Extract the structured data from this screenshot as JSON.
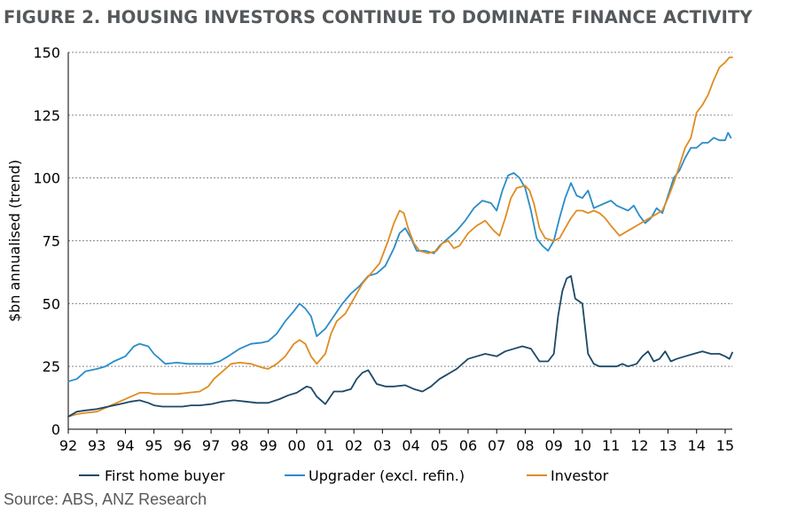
{
  "title": "FIGURE 2. HOUSING INVESTORS CONTINUE TO DOMINATE FINANCE ACTIVITY",
  "source": "Source: ABS, ANZ Research",
  "chart_data": {
    "type": "line",
    "ylabel": "$bn annualised (trend)",
    "xlabel": "",
    "ylim": [
      0,
      150
    ],
    "yticks": [
      0,
      25,
      50,
      75,
      100,
      125,
      150
    ],
    "xlim": [
      1992.0,
      2015.25
    ],
    "xticks": [
      "92",
      "93",
      "94",
      "95",
      "96",
      "97",
      "98",
      "99",
      "00",
      "01",
      "02",
      "03",
      "04",
      "05",
      "06",
      "07",
      "08",
      "09",
      "10",
      "11",
      "12",
      "13",
      "14",
      "15"
    ],
    "grid": "horizontal-dashed",
    "legend_position": "bottom",
    "series": [
      {
        "name": "First home buyer",
        "color": "#1b4968",
        "x": [
          1992.0,
          1992.3,
          1992.6,
          1993.0,
          1993.4,
          1993.8,
          1994.2,
          1994.5,
          1994.8,
          1995.0,
          1995.3,
          1995.6,
          1996.0,
          1996.3,
          1996.6,
          1997.0,
          1997.4,
          1997.8,
          1998.2,
          1998.6,
          1999.0,
          1999.4,
          1999.7,
          2000.0,
          2000.2,
          2000.35,
          2000.5,
          2000.7,
          2001.0,
          2001.3,
          2001.6,
          2001.9,
          2002.1,
          2002.3,
          2002.5,
          2002.8,
          2003.1,
          2003.4,
          2003.8,
          2004.1,
          2004.4,
          2004.7,
          2005.0,
          2005.3,
          2005.6,
          2006.0,
          2006.3,
          2006.6,
          2007.0,
          2007.3,
          2007.6,
          2007.9,
          2008.2,
          2008.5,
          2008.8,
          2009.0,
          2009.15,
          2009.3,
          2009.45,
          2009.6,
          2009.75,
          2010.0,
          2010.2,
          2010.4,
          2010.6,
          2010.8,
          2011.0,
          2011.2,
          2011.4,
          2011.6,
          2011.9,
          2012.1,
          2012.3,
          2012.5,
          2012.7,
          2012.9,
          2013.1,
          2013.3,
          2013.6,
          2013.9,
          2014.2,
          2014.5,
          2014.8,
          2015.0,
          2015.15,
          2015.25
        ],
        "values": [
          5,
          7,
          7.5,
          8,
          9,
          10,
          11,
          11.5,
          10.5,
          9.5,
          9,
          9,
          9,
          9.5,
          9.5,
          10,
          11,
          11.5,
          11,
          10.5,
          10.5,
          12,
          13.5,
          14.5,
          16,
          17,
          16.5,
          13,
          10,
          15,
          15,
          16,
          20,
          22.5,
          23.5,
          18,
          17,
          17,
          17.5,
          16,
          15,
          17,
          20,
          22,
          24,
          28,
          29,
          30,
          29,
          31,
          32,
          33,
          32,
          27,
          27,
          30,
          45,
          55,
          60,
          61,
          52,
          50,
          30,
          26,
          25,
          25,
          25,
          25,
          26,
          25,
          26,
          29,
          31,
          27,
          28,
          31,
          27,
          28,
          29,
          30,
          31,
          30,
          30,
          29,
          28,
          30.5
        ]
      },
      {
        "name": "Upgrader (excl. refin.)",
        "color": "#2b8cc8",
        "x": [
          1992.0,
          1992.3,
          1992.6,
          1993.0,
          1993.3,
          1993.6,
          1994.0,
          1994.3,
          1994.5,
          1994.8,
          1995.0,
          1995.4,
          1995.8,
          1996.2,
          1996.6,
          1997.0,
          1997.3,
          1997.6,
          1998.0,
          1998.4,
          1998.8,
          1999.0,
          1999.3,
          1999.6,
          1999.9,
          2000.1,
          2000.3,
          2000.5,
          2000.7,
          2001.0,
          2001.3,
          2001.6,
          2001.9,
          2002.2,
          2002.5,
          2002.8,
          2003.1,
          2003.4,
          2003.6,
          2003.8,
          2004.0,
          2004.2,
          2004.5,
          2004.8,
          2005.0,
          2005.3,
          2005.6,
          2005.9,
          2006.2,
          2006.5,
          2006.8,
          2007.0,
          2007.2,
          2007.4,
          2007.6,
          2007.8,
          2008.0,
          2008.2,
          2008.4,
          2008.6,
          2008.8,
          2009.0,
          2009.2,
          2009.4,
          2009.6,
          2009.8,
          2010.0,
          2010.2,
          2010.4,
          2010.6,
          2010.8,
          2011.0,
          2011.2,
          2011.4,
          2011.6,
          2011.8,
          2012.0,
          2012.2,
          2012.4,
          2012.6,
          2012.8,
          2013.0,
          2013.2,
          2013.4,
          2013.6,
          2013.8,
          2014.0,
          2014.2,
          2014.4,
          2014.6,
          2014.8,
          2015.0,
          2015.1,
          2015.2
        ],
        "values": [
          19,
          20,
          23,
          24,
          25,
          27,
          29,
          33,
          34,
          33,
          30,
          26,
          26.5,
          26,
          26,
          26,
          27,
          29,
          32,
          34,
          34.5,
          35,
          38,
          43,
          47,
          50,
          48,
          45,
          37,
          40,
          45,
          50,
          54,
          57,
          61,
          62,
          65,
          72,
          78,
          80,
          76,
          71,
          71,
          70,
          73,
          76,
          79,
          83,
          88,
          91,
          90,
          87,
          95,
          101,
          102,
          100,
          96,
          87,
          76,
          73,
          71,
          75,
          84,
          92,
          98,
          93,
          92,
          95,
          88,
          89,
          90,
          91,
          89,
          88,
          87,
          89,
          85,
          82,
          84,
          88,
          86,
          93,
          100,
          103,
          108,
          112,
          112,
          114,
          114,
          116,
          115,
          115,
          118,
          116
        ]
      },
      {
        "name": "Investor",
        "color": "#df8c21",
        "x": [
          1992.0,
          1992.3,
          1992.6,
          1993.0,
          1993.4,
          1993.8,
          1994.2,
          1994.5,
          1994.8,
          1995.0,
          1995.4,
          1995.8,
          1996.2,
          1996.6,
          1996.9,
          1997.1,
          1997.4,
          1997.7,
          1998.0,
          1998.4,
          1998.8,
          1999.0,
          1999.3,
          1999.6,
          1999.9,
          2000.1,
          2000.3,
          2000.5,
          2000.7,
          2001.0,
          2001.2,
          2001.4,
          2001.7,
          2002.0,
          2002.3,
          2002.6,
          2002.9,
          2003.2,
          2003.4,
          2003.6,
          2003.75,
          2003.9,
          2004.1,
          2004.3,
          2004.6,
          2004.9,
          2005.1,
          2005.3,
          2005.5,
          2005.7,
          2006.0,
          2006.3,
          2006.6,
          2006.9,
          2007.1,
          2007.3,
          2007.5,
          2007.7,
          2008.0,
          2008.15,
          2008.3,
          2008.5,
          2008.7,
          2009.0,
          2009.2,
          2009.4,
          2009.6,
          2009.8,
          2010.0,
          2010.2,
          2010.4,
          2010.6,
          2010.8,
          2011.0,
          2011.3,
          2011.6,
          2011.9,
          2012.2,
          2012.5,
          2012.8,
          2013.0,
          2013.2,
          2013.4,
          2013.6,
          2013.8,
          2014.0,
          2014.2,
          2014.4,
          2014.6,
          2014.8,
          2015.0,
          2015.15,
          2015.25
        ],
        "values": [
          5,
          6,
          6.5,
          7,
          9,
          11,
          13,
          14.5,
          14.5,
          14,
          14,
          14,
          14.5,
          15,
          17,
          20,
          23,
          26,
          26.5,
          26,
          24.5,
          24,
          26,
          29,
          34,
          35.5,
          34,
          29,
          26,
          30,
          38,
          43,
          46,
          52,
          58,
          62,
          66,
          75,
          82,
          87,
          86,
          80,
          74,
          71,
          70,
          71,
          74,
          75,
          72,
          73,
          78,
          81,
          83,
          79,
          77,
          84,
          92,
          96,
          97,
          95,
          90,
          80,
          76,
          75,
          76,
          80,
          84,
          87,
          87,
          86,
          87,
          86,
          84,
          81,
          77,
          79,
          81,
          83,
          85,
          87,
          92,
          98,
          105,
          112,
          116,
          126,
          129,
          133,
          139,
          144,
          146,
          148,
          148
        ]
      }
    ]
  }
}
